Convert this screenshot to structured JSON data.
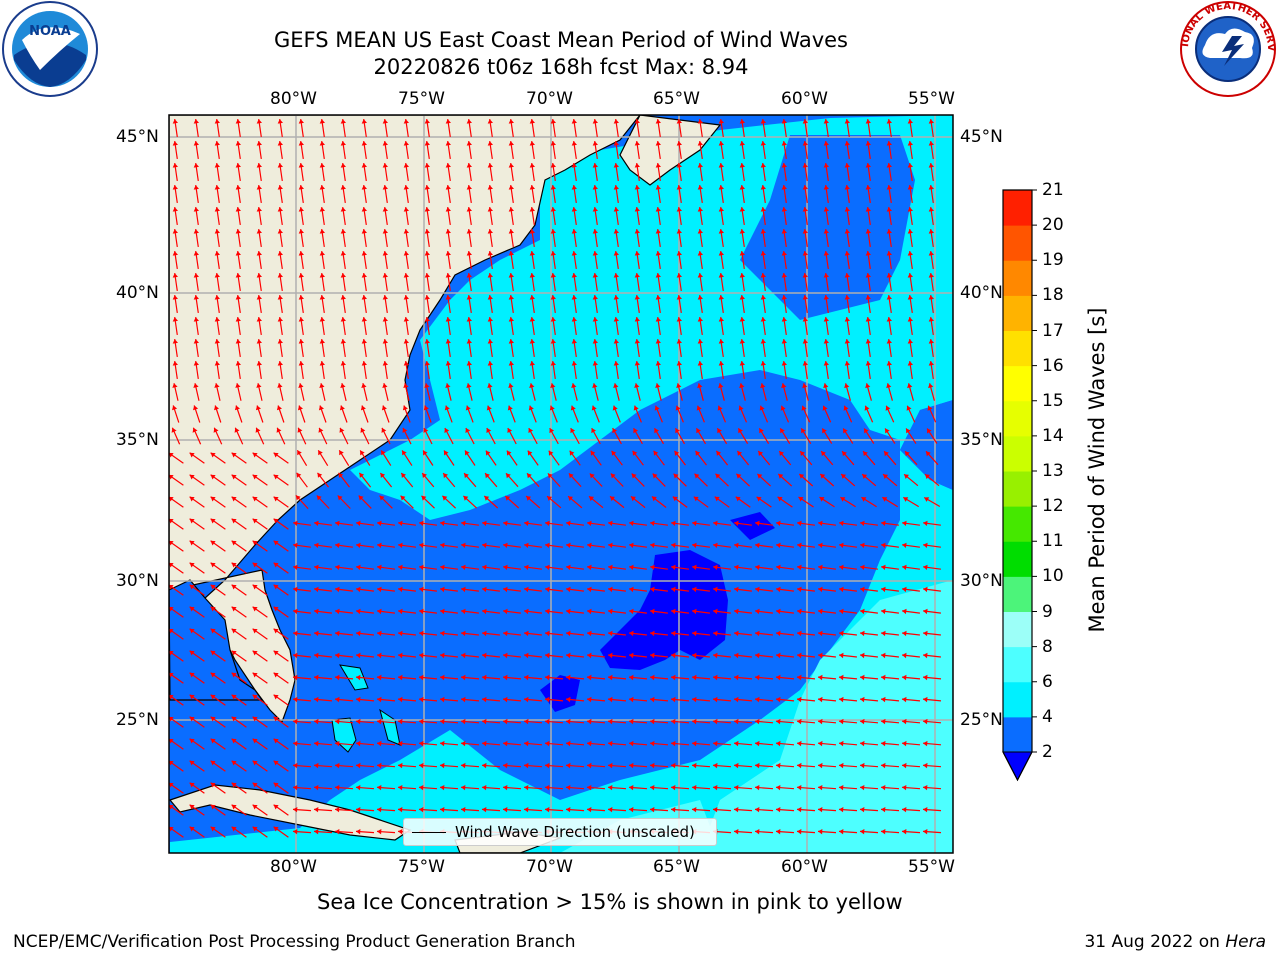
{
  "header": {
    "title_line1": "GEFS MEAN US East Coast Mean Period of Wind Waves",
    "title_line2": "20220826 t06z 168h fcst   Max: 8.94"
  },
  "logos": {
    "left": {
      "text": "NOAA",
      "icon": "noaa-logo"
    },
    "right": {
      "text": "NATIONAL WEATHER SERVICE",
      "icon": "nws-logo"
    }
  },
  "map": {
    "lon_labels": [
      "80°W",
      "75°W",
      "70°W",
      "65°W",
      "60°W",
      "55°W"
    ],
    "lat_labels": [
      "45°N",
      "40°N",
      "35°N",
      "30°N",
      "25°N"
    ],
    "lon_range": [
      -85,
      -54.5
    ],
    "lat_range": [
      20.5,
      46
    ],
    "field": "Mean Period of Wind Waves",
    "max_value": 8.94,
    "arrow_color": "#ff0000",
    "land_color": "#efeddc",
    "grid_color": "#b0b0b0"
  },
  "legend": {
    "label": "Wind Wave Direction (unscaled)"
  },
  "colorbar": {
    "title": "Mean Period of Wind Waves [s]",
    "ticks": [
      "2",
      "4",
      "6",
      "8",
      "9",
      "10",
      "11",
      "12",
      "13",
      "14",
      "15",
      "16",
      "17",
      "18",
      "19",
      "20",
      "21"
    ],
    "colors": [
      "#0a6dff",
      "#00f0ff",
      "#4dffff",
      "#9cfff8",
      "#4cf47a",
      "#00dd00",
      "#45e800",
      "#98f000",
      "#cbff00",
      "#e6ff00",
      "#ffff00",
      "#ffe000",
      "#ffb300",
      "#ff8800",
      "#ff5500",
      "#ff2000"
    ],
    "under_color": "#0000ff"
  },
  "footnote": "Sea Ice Concentration > 15% is shown in pink to yellow",
  "footer": {
    "left": "NCEP/EMC/Verification Post Processing Product Generation Branch",
    "right_date": "31 Aug 2022 on ",
    "right_host": "Hera"
  }
}
